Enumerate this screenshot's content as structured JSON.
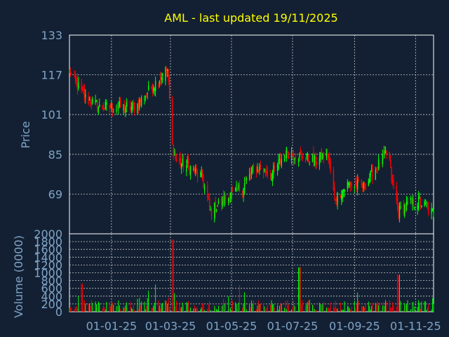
{
  "colors": {
    "background": "#132033",
    "panel": "#132033",
    "frame": "#ffffff",
    "grid": "#c8c8c8",
    "title": "#ffff00",
    "axis_text": "#7fa4c7",
    "up": "#00ff00",
    "down": "#ff0000"
  },
  "chart_data": [
    {
      "type": "candlestick",
      "title": "AML - last updated 19/11/2025",
      "ylabel": "Price",
      "xlabel": "",
      "ylim": [
        53,
        133
      ],
      "yticks": [
        133,
        117,
        101,
        85,
        69
      ],
      "xticks": [
        "01-01-25",
        "01-03-25",
        "01-05-25",
        "01-07-25",
        "01-09-25",
        "01-11-25"
      ],
      "grid": true,
      "anchor_points": [
        {
          "date": "2024-11-20",
          "close": 118
        },
        {
          "date": "2024-12-05",
          "close": 108
        },
        {
          "date": "2024-12-20",
          "close": 104
        },
        {
          "date": "2025-01-10",
          "close": 104
        },
        {
          "date": "2025-01-25",
          "close": 104
        },
        {
          "date": "2025-02-10",
          "close": 112
        },
        {
          "date": "2025-02-26",
          "close": 119
        },
        {
          "date": "2025-03-03",
          "close": 88
        },
        {
          "date": "2025-03-07",
          "close": 82
        },
        {
          "date": "2025-03-20",
          "close": 80
        },
        {
          "date": "2025-04-02",
          "close": 75
        },
        {
          "date": "2025-04-10",
          "close": 62
        },
        {
          "date": "2025-04-25",
          "close": 67
        },
        {
          "date": "2025-05-12",
          "close": 72
        },
        {
          "date": "2025-05-25",
          "close": 80
        },
        {
          "date": "2025-06-10",
          "close": 77
        },
        {
          "date": "2025-06-25",
          "close": 86
        },
        {
          "date": "2025-07-10",
          "close": 84
        },
        {
          "date": "2025-07-25",
          "close": 82
        },
        {
          "date": "2025-08-05",
          "close": 86
        },
        {
          "date": "2025-08-12",
          "close": 67
        },
        {
          "date": "2025-08-25",
          "close": 73
        },
        {
          "date": "2025-09-10",
          "close": 72
        },
        {
          "date": "2025-09-25",
          "close": 81
        },
        {
          "date": "2025-10-05",
          "close": 86
        },
        {
          "date": "2025-10-08",
          "close": 75
        },
        {
          "date": "2025-10-15",
          "close": 62
        },
        {
          "date": "2025-10-25",
          "close": 65
        },
        {
          "date": "2025-11-05",
          "close": 66
        },
        {
          "date": "2025-11-19",
          "close": 61
        }
      ],
      "x_range": [
        "2024-11-20",
        "2025-11-19"
      ]
    },
    {
      "type": "bar",
      "ylabel": "Volume (0000)",
      "ylim": [
        0,
        2000
      ],
      "yticks": [
        0,
        200,
        400,
        600,
        800,
        1000,
        1200,
        1400,
        1600,
        1800,
        2000
      ],
      "volume_spikes": [
        {
          "date": "2025-03-03",
          "value": 1850
        },
        {
          "date": "2025-07-08",
          "value": 1140
        },
        {
          "date": "2025-10-15",
          "value": 950
        },
        {
          "date": "2024-12-02",
          "value": 720
        },
        {
          "date": "2025-02-15",
          "value": 700
        },
        {
          "date": "2025-05-10",
          "value": 680
        }
      ]
    }
  ]
}
